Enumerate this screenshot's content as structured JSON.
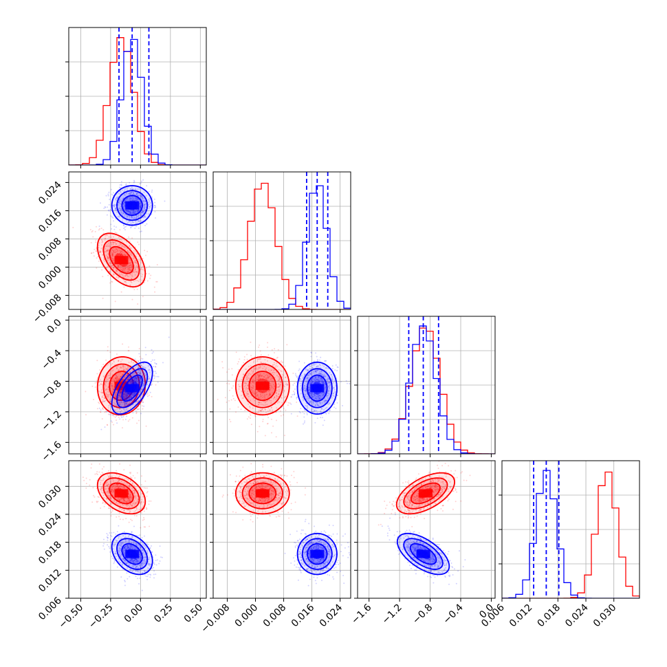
{
  "chart_data": {
    "type": "corner",
    "series": [
      {
        "name": "",
        "color": "#ff0000",
        "mean": [
          -0.16,
          0.002,
          -0.86,
          0.0285
        ],
        "sd": [
          0.1,
          0.0038,
          0.19,
          0.0022
        ],
        "corr": {
          "0-1": -0.5,
          "0-2": 0.05,
          "0-3": -0.4,
          "1-2": 0.0,
          "1-3": 0.0,
          "2-3": 0.55
        }
      },
      {
        "name": "",
        "color": "#0000ff",
        "mean": [
          -0.07,
          0.0175,
          -0.89,
          0.0155
        ],
        "sd": [
          0.085,
          0.0028,
          0.17,
          0.0022
        ],
        "corr": {
          "0-1": 0.0,
          "0-2": 0.6,
          "0-3": -0.35,
          "1-2": 0.0,
          "1-3": 0.0,
          "2-3": -0.6
        }
      }
    ],
    "quantiles_blue": [
      [
        -0.18,
        -0.07,
        0.07
      ],
      [
        0.0145,
        0.0175,
        0.0205
      ],
      [
        -1.08,
        -0.89,
        -0.69
      ],
      [
        0.0128,
        0.0155,
        0.0182
      ]
    ],
    "axes": [
      {
        "range": [
          -0.6,
          0.55
        ],
        "ticks": [
          -0.5,
          -0.25,
          0.0,
          0.25,
          0.5
        ],
        "tick_labels": [
          "−0.50",
          "−0.25",
          "0.00",
          "0.25",
          "0.50"
        ]
      },
      {
        "range": [
          -0.012,
          0.027
        ],
        "ticks": [
          -0.008,
          0.0,
          0.008,
          0.016,
          0.024
        ],
        "tick_labels": [
          "−0.008",
          "0.000",
          "0.008",
          "0.016",
          "0.024"
        ]
      },
      {
        "range": [
          -1.75,
          0.05
        ],
        "ticks": [
          -1.6,
          -1.2,
          -0.8,
          -0.4,
          0.0
        ],
        "tick_labels": [
          "−1.6",
          "−1.2",
          "−0.8",
          "−0.4",
          "0.0"
        ]
      },
      {
        "range": [
          0.006,
          0.0355
        ],
        "ticks": [
          0.006,
          0.012,
          0.018,
          0.024,
          0.03
        ],
        "tick_labels": [
          "0.006",
          "0.012",
          "0.018",
          "0.024",
          "0.030"
        ]
      }
    ],
    "grid": true,
    "legend": "none"
  }
}
